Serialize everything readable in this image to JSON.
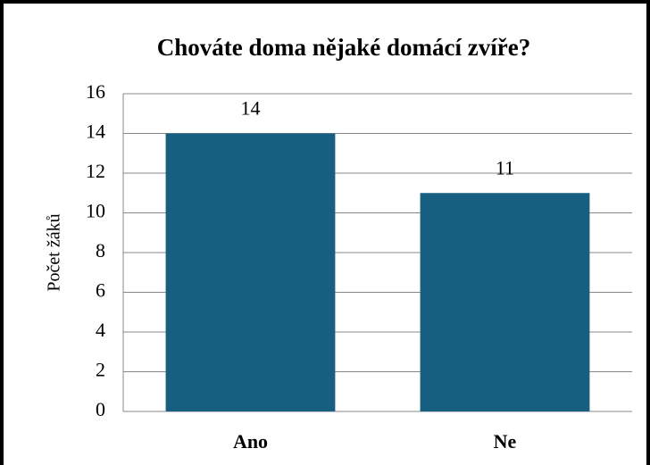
{
  "chart_data": {
    "type": "bar",
    "title": "Chováte doma nějaké domácí zvíře?",
    "ylabel": "Počet žáků",
    "categories": [
      "Ano",
      "Ne"
    ],
    "values": [
      14,
      11
    ],
    "color": "#175f80",
    "ylim": [
      0,
      16
    ],
    "yticks": [
      0,
      2,
      4,
      6,
      8,
      10,
      12,
      14,
      16
    ],
    "grid": true
  }
}
